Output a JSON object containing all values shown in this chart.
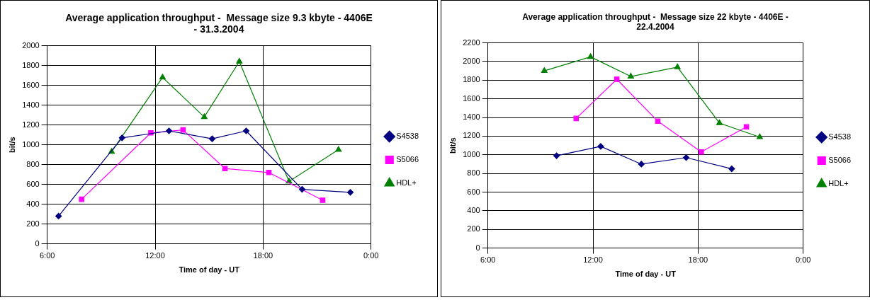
{
  "chart_data": [
    {
      "type": "line",
      "title": "Average application throughput -  Message size 9.3 kbyte - 4406E - 31.3.2004",
      "xlabel": "Time of day - UT",
      "ylabel": "bit/s",
      "xlim": [
        6,
        24
      ],
      "xticks": [
        {
          "value": 6,
          "label": "6:00"
        },
        {
          "value": 12,
          "label": "12:00"
        },
        {
          "value": 18,
          "label": "18:00"
        },
        {
          "value": 24,
          "label": "0:00"
        }
      ],
      "ylim": [
        0,
        2000
      ],
      "yticks": [
        0,
        200,
        400,
        600,
        800,
        1000,
        1200,
        1400,
        1600,
        1800,
        2000
      ],
      "grid": true,
      "legend": "right",
      "series": [
        {
          "name": "S4538",
          "color": "#000080",
          "marker": "diamond",
          "x": [
            6.63,
            10.16,
            12.77,
            15.17,
            17.06,
            20.17,
            22.85
          ],
          "values": [
            280,
            1070,
            1140,
            1060,
            1140,
            550,
            520
          ]
        },
        {
          "name": "S5066",
          "color": "#ff00ff",
          "marker": "square",
          "x": [
            7.91,
            11.76,
            13.55,
            15.88,
            18.32,
            21.31
          ],
          "values": [
            450,
            1120,
            1150,
            760,
            720,
            440
          ]
        },
        {
          "name": "HDL+",
          "color": "#008000",
          "marker": "triangle",
          "x": [
            9.58,
            12.41,
            14.73,
            16.68,
            19.44,
            22.19
          ],
          "values": [
            930,
            1680,
            1280,
            1840,
            630,
            950
          ]
        }
      ]
    },
    {
      "type": "line",
      "title": "Average application throughput -  Message size 22 kbyte - 4406E - 22.4.2004",
      "xlabel": "Time of day - UT",
      "ylabel": "bit/s",
      "xlim": [
        6,
        24
      ],
      "xticks": [
        {
          "value": 6,
          "label": "6:00"
        },
        {
          "value": 12,
          "label": "12:00"
        },
        {
          "value": 18,
          "label": "18:00"
        },
        {
          "value": 24,
          "label": "0:00"
        }
      ],
      "ylim": [
        0,
        2200
      ],
      "yticks": [
        0,
        200,
        400,
        600,
        800,
        1000,
        1200,
        1400,
        1600,
        1800,
        2000,
        2200
      ],
      "grid": true,
      "legend": "right",
      "series": [
        {
          "name": "S4538",
          "color": "#000080",
          "marker": "diamond",
          "x": [
            9.92,
            12.44,
            14.76,
            17.32,
            19.92
          ],
          "values": [
            990,
            1090,
            900,
            970,
            850
          ]
        },
        {
          "name": "S5066",
          "color": "#ff00ff",
          "marker": "square",
          "x": [
            11.04,
            13.36,
            15.7,
            18.18,
            20.76
          ],
          "values": [
            1390,
            1810,
            1360,
            1030,
            1300
          ]
        },
        {
          "name": "HDL+",
          "color": "#008000",
          "marker": "triangle",
          "x": [
            9.22,
            11.86,
            14.16,
            16.82,
            19.22,
            21.52
          ],
          "values": [
            1900,
            2050,
            1840,
            1940,
            1340,
            1190
          ]
        }
      ]
    }
  ]
}
